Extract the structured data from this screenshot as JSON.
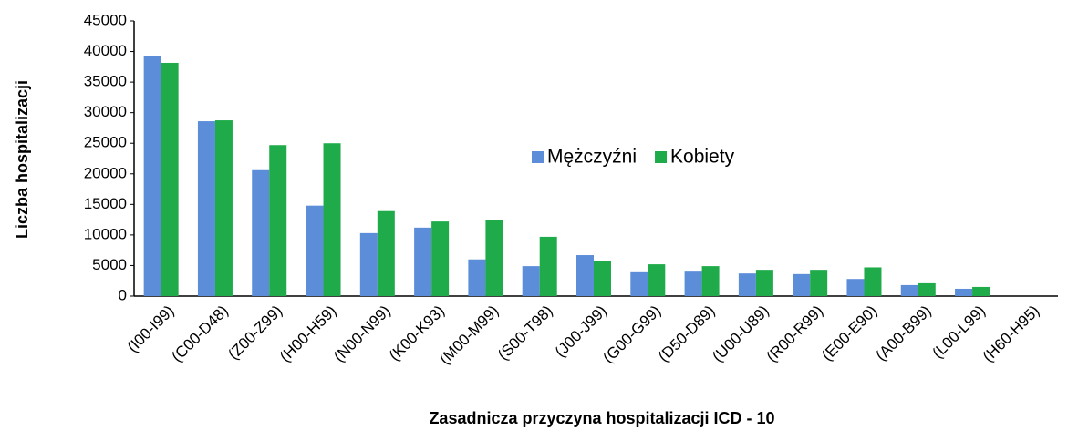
{
  "chart_data": {
    "type": "bar",
    "x_label": "Zasadnicza przyczyna hospitalizacji ICD - 10",
    "y_label": "Liczba hospitalizacji",
    "categories": [
      "(I00-I99)",
      "(C00-D48)",
      "(Z00-Z99)",
      "(H00-H59)",
      "(N00-N99)",
      "(K00-K93)",
      "(M00-M99)",
      "(S00-T98)",
      "(J00-J99)",
      "(G00-G99)",
      "(D50-D89)",
      "(U00-U89)",
      "(R00-R99)",
      "(E00-E90)",
      "(A00-B99)",
      "(L00-L99)",
      "(H60-H95)"
    ],
    "series": [
      {
        "name": "Mężczyźni",
        "color": "#5b8dd9",
        "values": [
          39200,
          28600,
          20600,
          14800,
          10300,
          11200,
          6000,
          4900,
          6700,
          3900,
          4000,
          3700,
          3600,
          2800,
          1800,
          1200,
          0
        ]
      },
      {
        "name": "Kobiety",
        "color": "#1fab4a",
        "values": [
          38150,
          28750,
          24700,
          25000,
          13900,
          12200,
          12400,
          9700,
          5800,
          5200,
          4900,
          4300,
          4300,
          4700,
          2100,
          1500,
          0
        ]
      }
    ],
    "ylim": [
      0,
      45000
    ],
    "yticks": [
      0,
      5000,
      10000,
      15000,
      20000,
      25000,
      30000,
      35000,
      40000,
      45000
    ],
    "grid": false,
    "legend": "center"
  }
}
